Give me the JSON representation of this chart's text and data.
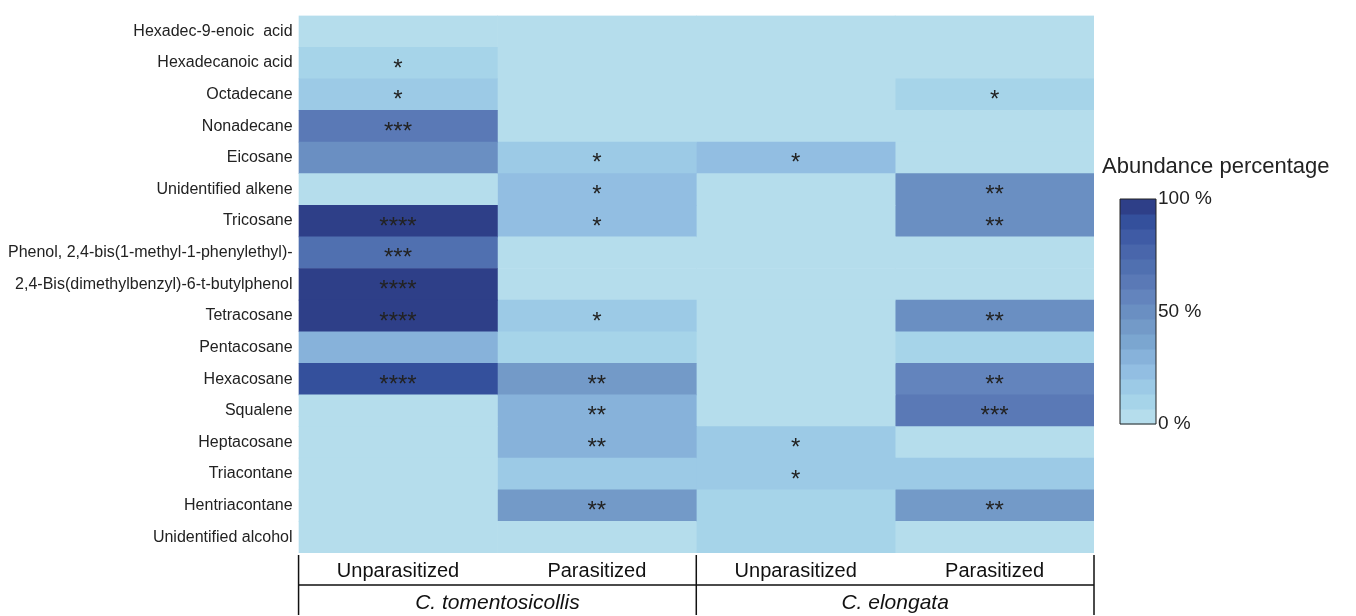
{
  "chart_data": {
    "type": "heatmap",
    "clabel": "Abundance percentage",
    "categories": [
      "Unparasitized",
      "Parasitized",
      "Unparasitized",
      "Parasitized"
    ],
    "y_categories": [
      "Hexadec-9-enoic  acid",
      "Hexadecanoic acid",
      "Octadecane",
      "Nonadecane",
      "Eicosane",
      "Unidentified alkene",
      "Tricosane",
      "Phenol, 2,4-bis(1-methyl-1-phenylethyl)-",
      "2,4-Bis(dimethylbenzyl)-6-t-butylphenol",
      "Tetracosane",
      "Pentacosane",
      "Hexacosane",
      "Squalene",
      "Heptacosane",
      "Triacontane",
      "Hentriacontane",
      "Unidentified alcohol"
    ],
    "cells": [
      [
        3,
        3,
        3,
        3
      ],
      [
        10,
        3,
        3,
        3
      ],
      [
        17,
        3,
        3,
        10
      ],
      [
        63,
        3,
        3,
        3
      ],
      [
        47,
        17,
        23,
        3
      ],
      [
        3,
        23,
        3,
        47
      ],
      [
        97,
        23,
        3,
        47
      ],
      [
        70,
        3,
        3,
        3
      ],
      [
        97,
        3,
        3,
        3
      ],
      [
        97,
        17,
        3,
        50
      ],
      [
        30,
        10,
        3,
        10
      ],
      [
        90,
        40,
        3,
        57
      ],
      [
        3,
        30,
        3,
        63
      ],
      [
        3,
        30,
        17,
        3
      ],
      [
        3,
        17,
        17,
        17
      ],
      [
        3,
        40,
        10,
        40
      ],
      [
        3,
        3,
        10,
        3
      ]
    ],
    "cell_labels": [
      [
        null,
        null,
        null,
        null
      ],
      [
        "*",
        null,
        null,
        null
      ],
      [
        "*",
        null,
        null,
        "*"
      ],
      [
        "***",
        null,
        null,
        null
      ],
      [
        null,
        "*",
        "*",
        null
      ],
      [
        null,
        "*",
        null,
        "**"
      ],
      [
        "****",
        "*",
        null,
        "**"
      ],
      [
        "***",
        null,
        null,
        null
      ],
      [
        "****",
        null,
        null,
        null
      ],
      [
        "****",
        "*",
        null,
        "**"
      ],
      [
        null,
        null,
        null,
        null
      ],
      [
        "****",
        "**",
        null,
        "**"
      ],
      [
        null,
        "**",
        null,
        "***"
      ],
      [
        null,
        "**",
        "*",
        null
      ],
      [
        null,
        null,
        "*",
        null
      ],
      [
        null,
        "**",
        null,
        "**"
      ],
      [
        null,
        null,
        null,
        null
      ]
    ],
    "clim": [
      0,
      100
    ],
    "cticks": [
      {
        "value": 0,
        "label": "0 %"
      },
      {
        "value": 50,
        "label": "50 %"
      },
      {
        "value": 100,
        "label": "100 %"
      }
    ],
    "annotations": [
      "C. tomentosicollis",
      "C. elongata"
    ]
  }
}
